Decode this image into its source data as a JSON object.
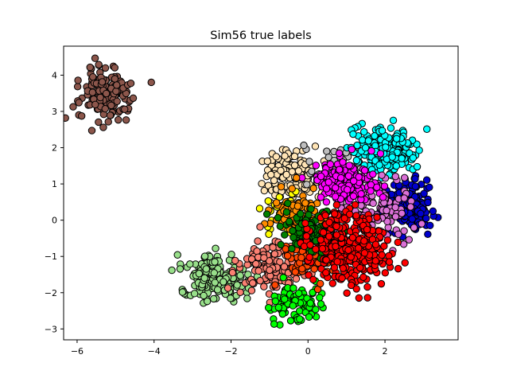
{
  "chart_data": {
    "type": "scatter",
    "title": "Sim56 true labels",
    "xlabel": "",
    "ylabel": "",
    "xlim": [
      -6.35,
      3.9
    ],
    "ylim": [
      -3.3,
      4.8
    ],
    "xticks": [
      -6,
      -4,
      -2,
      0,
      2
    ],
    "yticks": [
      -3,
      -2,
      -1,
      0,
      1,
      2,
      3,
      4
    ],
    "xtick_labels": [
      "−6",
      "−4",
      "−2",
      "0",
      "2"
    ],
    "ytick_labels": [
      "−3",
      "−2",
      "−1",
      "0",
      "1",
      "2",
      "3",
      "4"
    ],
    "grid": false,
    "legend": "none",
    "marker_edge_color": "#000000",
    "clusters": [
      {
        "color": "#8c564b",
        "center": [
          -5.25,
          3.45
        ],
        "spread": [
          0.33,
          0.35
        ],
        "n": 170
      },
      {
        "color": "#98df8a",
        "center": [
          -2.5,
          -1.65
        ],
        "spread": [
          0.38,
          0.3
        ],
        "n": 200
      },
      {
        "color": "#ffe4b5",
        "center": [
          -0.45,
          1.2
        ],
        "spread": [
          0.4,
          0.4
        ],
        "n": 150
      },
      {
        "color": "#bebebe",
        "center": [
          0.9,
          1.45
        ],
        "spread": [
          0.4,
          0.3
        ],
        "n": 50
      },
      {
        "color": "#00ffff",
        "center": [
          2.05,
          1.95
        ],
        "spread": [
          0.38,
          0.33
        ],
        "n": 200
      },
      {
        "color": "#0000cd",
        "center": [
          2.65,
          0.4
        ],
        "spread": [
          0.33,
          0.33
        ],
        "n": 180
      },
      {
        "color": "#da70d6",
        "center": [
          1.75,
          0.2
        ],
        "spread": [
          0.45,
          0.45
        ],
        "n": 130
      },
      {
        "color": "#ff00ff",
        "center": [
          0.95,
          1.05
        ],
        "spread": [
          0.4,
          0.3
        ],
        "n": 170
      },
      {
        "color": "#ffff00",
        "center": [
          -0.7,
          0.25
        ],
        "spread": [
          0.2,
          0.3
        ],
        "n": 25
      },
      {
        "color": "#ff8c00",
        "center": [
          -0.25,
          0.1
        ],
        "spread": [
          0.35,
          0.35
        ],
        "n": 80
      },
      {
        "color": "#fa8072",
        "center": [
          -0.95,
          -1.3
        ],
        "spread": [
          0.4,
          0.35
        ],
        "n": 160
      },
      {
        "color": "#00ff00",
        "center": [
          -0.35,
          -2.35
        ],
        "spread": [
          0.35,
          0.25
        ],
        "n": 90
      },
      {
        "color": "#ff4500",
        "center": [
          0.05,
          -1.1
        ],
        "spread": [
          0.35,
          0.35
        ],
        "n": 80
      },
      {
        "color": "#008000",
        "center": [
          -0.05,
          -0.25
        ],
        "spread": [
          0.35,
          0.3
        ],
        "n": 100
      },
      {
        "color": "#ff0000",
        "center": [
          1.05,
          -0.75
        ],
        "spread": [
          0.5,
          0.5
        ],
        "n": 320
      }
    ]
  }
}
